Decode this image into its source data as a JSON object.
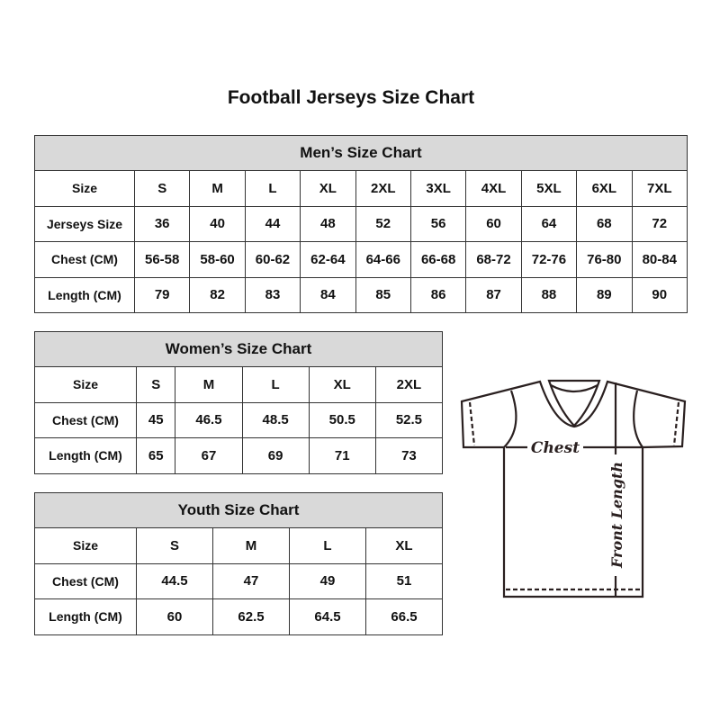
{
  "title": "Football Jerseys Size Chart",
  "men": {
    "heading": "Men’s Size Chart",
    "rows": [
      [
        "Size",
        "S",
        "M",
        "L",
        "XL",
        "2XL",
        "3XL",
        "4XL",
        "5XL",
        "6XL",
        "7XL"
      ],
      [
        "Jerseys Size",
        "36",
        "40",
        "44",
        "48",
        "52",
        "56",
        "60",
        "64",
        "68",
        "72"
      ],
      [
        "Chest (CM)",
        "56-58",
        "58-60",
        "60-62",
        "62-64",
        "64-66",
        "66-68",
        "68-72",
        "72-76",
        "76-80",
        "80-84"
      ],
      [
        "Length (CM)",
        "79",
        "82",
        "83",
        "84",
        "85",
        "86",
        "87",
        "88",
        "89",
        "90"
      ]
    ]
  },
  "women": {
    "heading": "Women’s Size Chart",
    "rows": [
      [
        "Size",
        "S",
        "M",
        "L",
        "XL",
        "2XL"
      ],
      [
        "Chest (CM)",
        "45",
        "46.5",
        "48.5",
        "50.5",
        "52.5"
      ],
      [
        "Length (CM)",
        "65",
        "67",
        "69",
        "71",
        "73"
      ]
    ]
  },
  "youth": {
    "heading": "Youth Size Chart",
    "rows": [
      [
        "Size",
        "S",
        "M",
        "L",
        "XL"
      ],
      [
        "Chest (CM)",
        "44.5",
        "47",
        "49",
        "51"
      ],
      [
        "Length (CM)",
        "60",
        "62.5",
        "64.5",
        "66.5"
      ]
    ]
  },
  "diagram": {
    "chest_label": "Chest",
    "length_label": "Front Length"
  }
}
